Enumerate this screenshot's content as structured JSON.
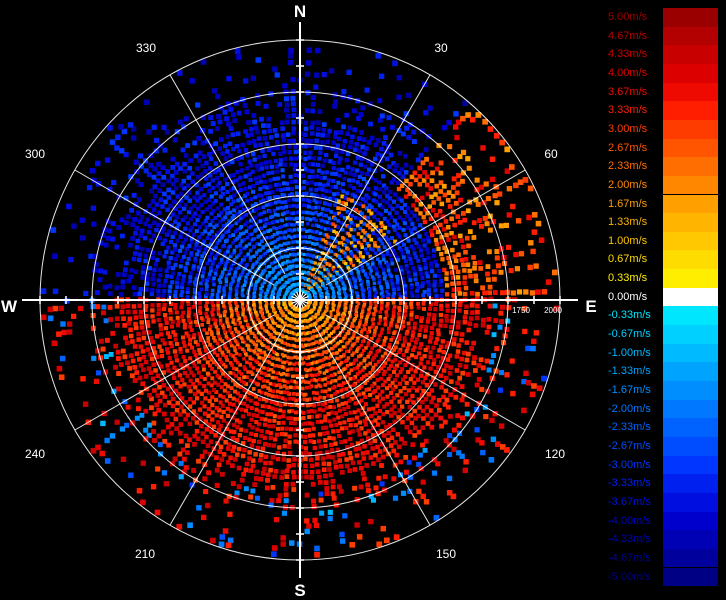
{
  "compass": {
    "north": "N",
    "east": "E",
    "south": "S",
    "west": "W"
  },
  "azimuth_labels": [
    "30",
    "60",
    "120",
    "150",
    "210",
    "240",
    "300",
    "330"
  ],
  "range_labels": [
    "1750",
    "2000"
  ],
  "colors": {
    "background": "#000000",
    "grid": "#ffffff",
    "zero": "#ffffff"
  },
  "legend": [
    {
      "label": "5.00m/s",
      "color": "#9a0000"
    },
    {
      "label": "4.67m/s",
      "color": "#b30000"
    },
    {
      "label": "4.33m/s",
      "color": "#c80000"
    },
    {
      "label": "4.00m/s",
      "color": "#dc0000"
    },
    {
      "label": "3.67m/s",
      "color": "#ee0a00"
    },
    {
      "label": "3.33m/s",
      "color": "#ff1e00"
    },
    {
      "label": "3.00m/s",
      "color": "#ff3c00"
    },
    {
      "label": "2.67m/s",
      "color": "#ff5500"
    },
    {
      "label": "2.33m/s",
      "color": "#ff6e00"
    },
    {
      "label": "2.00m/s",
      "color": "#ff8700"
    },
    {
      "label": "1.67m/s",
      "color": "#ff9f00"
    },
    {
      "label": "1.33m/s",
      "color": "#ffb400"
    },
    {
      "label": "1.00m/s",
      "color": "#ffc800"
    },
    {
      "label": "0.67m/s",
      "color": "#ffdc00"
    },
    {
      "label": "0.33m/s",
      "color": "#ffee00"
    },
    {
      "label": "0.00m/s",
      "color": "#ffffff"
    },
    {
      "label": "-0.33m/s",
      "color": "#00e6ff"
    },
    {
      "label": "-0.67m/s",
      "color": "#00d0ff"
    },
    {
      "label": "-1.00m/s",
      "color": "#00baff"
    },
    {
      "label": "-1.33m/s",
      "color": "#00a4ff"
    },
    {
      "label": "-1.67m/s",
      "color": "#008eff"
    },
    {
      "label": "-2.00m/s",
      "color": "#0078ff"
    },
    {
      "label": "-2.33m/s",
      "color": "#0062ff"
    },
    {
      "label": "-2.67m/s",
      "color": "#004cff"
    },
    {
      "label": "-3.00m/s",
      "color": "#0036ff"
    },
    {
      "label": "-3.33m/s",
      "color": "#0020f0"
    },
    {
      "label": "-3.67m/s",
      "color": "#000ee0"
    },
    {
      "label": "-4.00m/s",
      "color": "#0000cc"
    },
    {
      "label": "-4.33m/s",
      "color": "#0000b4"
    },
    {
      "label": "-4.67m/s",
      "color": "#00009c"
    },
    {
      "label": "-5.00m/s",
      "color": "#000084"
    }
  ]
}
